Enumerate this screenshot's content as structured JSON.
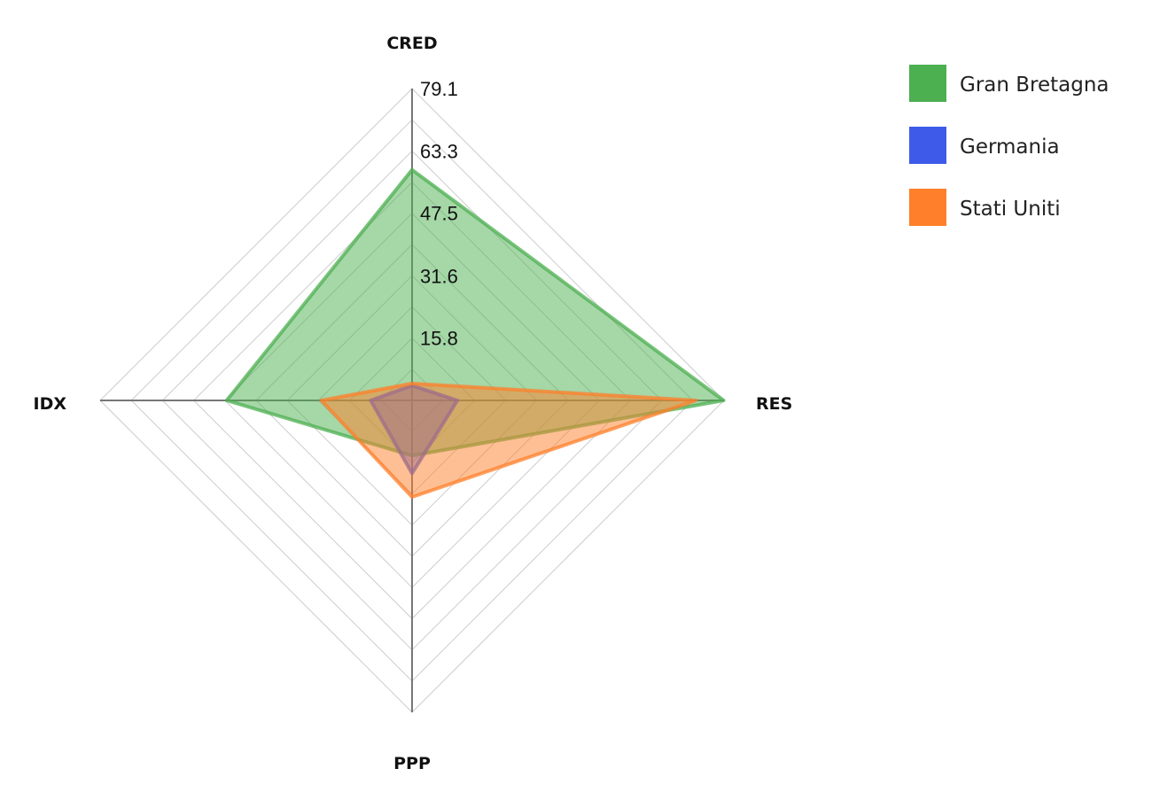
{
  "chart_data": {
    "type": "radar",
    "axes": [
      "CRED",
      "RES",
      "PPP",
      "IDX"
    ],
    "radial_ticks": [
      "15.8",
      "31.6",
      "47.5",
      "63.3",
      "79.1"
    ],
    "radial_range": [
      0,
      79.1
    ],
    "grid": true,
    "legend_position": "top-right",
    "series": [
      {
        "name": "Gran Bretagna",
        "color": "#4caf50",
        "values": [
          58.5,
          79.0,
          14.0,
          47.0
        ]
      },
      {
        "name": "Germania",
        "color": "#3d5ae8",
        "values": [
          3.8,
          11.5,
          18.5,
          10.5
        ]
      },
      {
        "name": "Stati Uniti",
        "color": "#ff7f2a",
        "values": [
          4.3,
          72.0,
          24.5,
          23.0
        ]
      }
    ]
  }
}
